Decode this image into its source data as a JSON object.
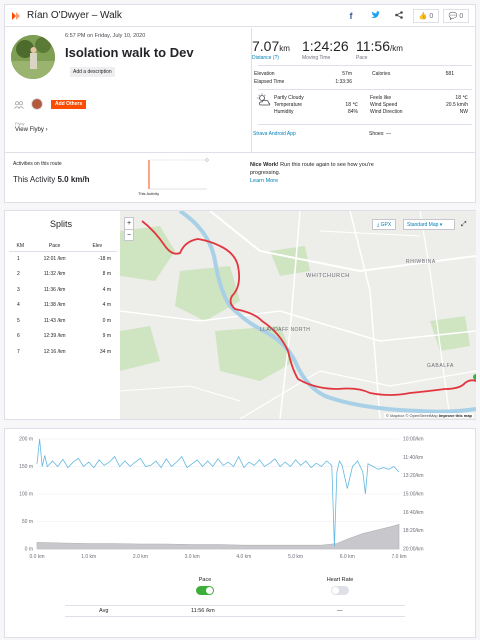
{
  "header": {
    "title": "Rían O'Dwyer – Walk",
    "actions": {
      "facebook": "f",
      "twitter": "🐦",
      "share": "<",
      "kudos": "0",
      "comments": "0"
    }
  },
  "activity": {
    "date_line": "6:57 PM on Friday, July 10, 2020",
    "title": "Isolation walk to Dev",
    "add_description": "Add a description",
    "add_others": "Add Others",
    "flyby_small": "Flyby",
    "view_flyby": "View Flyby ›"
  },
  "stats": {
    "distance_value": "7.07",
    "distance_unit": "km",
    "distance_label": "Distance (?)",
    "moving_time_value": "1:24:26",
    "moving_time_label": "Moving Time",
    "pace_value": "11:56",
    "pace_unit": "/km",
    "pace_label": "Pace",
    "elevation_label": "Elevation",
    "elevation_value": "57m",
    "calories_label": "Calories",
    "calories_value": "581",
    "elapsed_label": "Elapsed Time",
    "elapsed_value": "1:33:36"
  },
  "weather": {
    "condition": "Partly Cloudy",
    "temperature_label": "Temperature",
    "temperature_value": "18 ℃",
    "humidity_label": "Humidity",
    "humidity_value": "84%",
    "feels_like_label": "Feels like",
    "feels_like_value": "18 ℃",
    "wind_speed_label": "Wind Speed",
    "wind_speed_value": "20.5 km/h",
    "wind_direction_label": "Wind Direction",
    "wind_direction_value": "NW",
    "icon": "cloud-sun-icon"
  },
  "footer_links": {
    "strava_app": "Strava Android App",
    "shoes": "Shoes: —"
  },
  "route": {
    "label": "Activities on this route",
    "this_activity_label": "This Activity",
    "this_activity_pace": "5.0 km/h",
    "chart_label": "This Activity",
    "nice_work_bold": "Nice Work!",
    "nice_work_text": " Run this route again to see how you're progressing.",
    "learn_more": "Learn More"
  },
  "splits": {
    "title": "Splits",
    "columns": [
      "KM",
      "Pace",
      "Elev"
    ],
    "rows": [
      {
        "km": "1",
        "pace": "12:01 /km",
        "elev": "-18 m"
      },
      {
        "km": "2",
        "pace": "11:32 /km",
        "elev": "8 m"
      },
      {
        "km": "3",
        "pace": "11:36 /km",
        "elev": "4 m"
      },
      {
        "km": "4",
        "pace": "11:38 /km",
        "elev": "4 m"
      },
      {
        "km": "5",
        "pace": "11:43 /km",
        "elev": "0 m"
      },
      {
        "km": "6",
        "pace": "12:39 /km",
        "elev": "9 m"
      },
      {
        "km": "7",
        "pace": "12:16 /km",
        "elev": "34 m"
      }
    ]
  },
  "map": {
    "zoom_in": "+",
    "zoom_out": "−",
    "gpx": "⤓ GPX",
    "style": "Standard Map ▾",
    "fullscreen": "⤢",
    "attribution": "© Mapbox © OpenStreetMap",
    "improve": "Improve this map",
    "place_labels": [
      "WHITCHURCH",
      "RHIWBINA",
      "LLANDAFF NORTH",
      "GABALFA"
    ]
  },
  "chart_data": {
    "type": "line",
    "x_ticks": [
      "0.0 km",
      "1.0 km",
      "2.0 km",
      "3.0 km",
      "4.0 km",
      "5.0 km",
      "6.0 km",
      "7.0 km"
    ],
    "y_left_ticks": [
      "200 m",
      "150 m",
      "100 m",
      "50 m",
      "0 m"
    ],
    "y_right_ticks": [
      "10:00/km",
      "11:40/km",
      "13:20/km",
      "15:00/km",
      "16:40/km",
      "18:20/km",
      "20:00/km"
    ],
    "xlim": [
      0,
      7
    ],
    "ylim_elevation": [
      0,
      200
    ],
    "series": [
      {
        "name": "Pace",
        "color": "#64b8e0",
        "x": [
          0.0,
          0.05,
          0.1,
          0.15,
          0.2,
          0.3,
          0.4,
          0.5,
          0.6,
          0.7,
          0.8,
          0.9,
          1.0,
          1.1,
          1.2,
          1.3,
          1.4,
          1.5,
          1.6,
          1.7,
          1.8,
          1.9,
          2.0,
          2.1,
          2.2,
          2.3,
          2.4,
          2.5,
          2.6,
          2.7,
          2.8,
          2.9,
          3.0,
          3.1,
          3.2,
          3.3,
          3.4,
          3.5,
          3.6,
          3.7,
          3.8,
          3.9,
          4.0,
          4.1,
          4.2,
          4.3,
          4.4,
          4.5,
          4.6,
          4.7,
          4.8,
          4.9,
          5.0,
          5.1,
          5.2,
          5.3,
          5.4,
          5.5,
          5.6,
          5.7,
          5.75,
          5.8,
          5.85,
          5.9,
          6.0,
          6.1,
          6.2,
          6.3,
          6.35,
          6.4,
          6.5,
          6.6,
          6.7,
          6.8,
          6.9,
          7.0
        ],
        "y": [
          155,
          200,
          150,
          170,
          150,
          160,
          150,
          163,
          148,
          158,
          165,
          150,
          158,
          148,
          162,
          152,
          158,
          168,
          150,
          160,
          150,
          158,
          165,
          150,
          152,
          160,
          148,
          164,
          150,
          158,
          168,
          148,
          155,
          162,
          150,
          160,
          150,
          164,
          152,
          158,
          150,
          168,
          148,
          158,
          152,
          162,
          150,
          156,
          164,
          150,
          158,
          150,
          162,
          152,
          160,
          148,
          156,
          150,
          160,
          152,
          5,
          140,
          160,
          152,
          110,
          150,
          160,
          140,
          100,
          155,
          150,
          145,
          148,
          145,
          150,
          140
        ]
      },
      {
        "name": "Elevation",
        "color": "#c8c8cc",
        "x": [
          0.0,
          0.5,
          1.0,
          1.5,
          2.0,
          2.5,
          3.0,
          3.5,
          4.0,
          4.5,
          5.0,
          5.5,
          5.8,
          6.0,
          6.3,
          6.6,
          6.9,
          7.0
        ],
        "y": [
          12,
          11,
          10,
          10,
          9,
          9,
          8,
          8,
          7,
          7,
          7,
          7,
          10,
          18,
          28,
          35,
          42,
          45
        ]
      }
    ]
  },
  "controls": {
    "pace_label": "Pace",
    "heart_rate_label": "Heart Rate",
    "avg_label": "Avg",
    "avg_pace": "11:56 /km",
    "avg_hr": "—"
  },
  "colors": {
    "brand": "#fc4c02",
    "link": "#007fb6",
    "route": "#e2363f",
    "river": "#a8d0e6",
    "park": "#c7e2b7"
  }
}
